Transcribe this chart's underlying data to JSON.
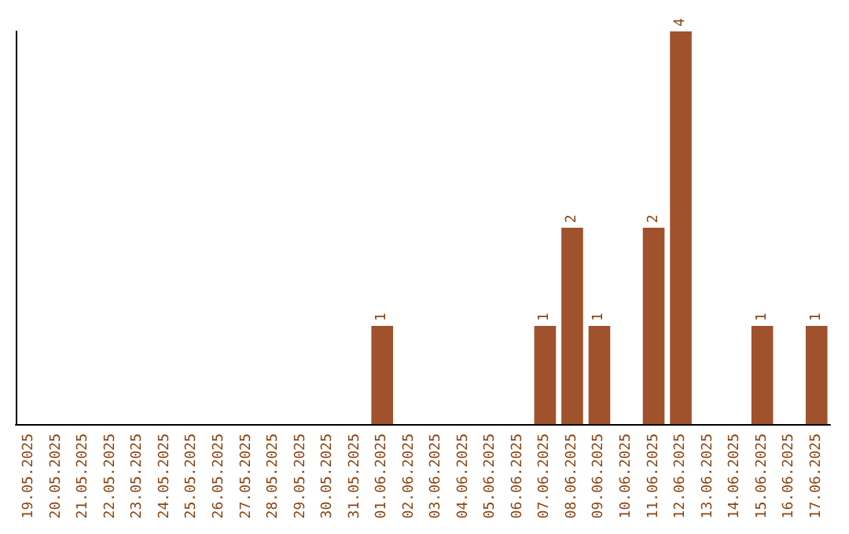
{
  "chart_data": {
    "type": "bar",
    "categories": [
      "19.05.2025",
      "20.05.2025",
      "21.05.2025",
      "22.05.2025",
      "23.05.2025",
      "24.05.2025",
      "25.05.2025",
      "26.05.2025",
      "27.05.2025",
      "28.05.2025",
      "29.05.2025",
      "30.05.2025",
      "31.05.2025",
      "01.06.2025",
      "02.06.2025",
      "03.06.2025",
      "04.06.2025",
      "05.06.2025",
      "06.06.2025",
      "07.06.2025",
      "08.06.2025",
      "09.06.2025",
      "10.06.2025",
      "11.06.2025",
      "12.06.2025",
      "13.06.2025",
      "14.06.2025",
      "15.06.2025",
      "16.06.2025",
      "17.06.2025"
    ],
    "values": [
      null,
      null,
      null,
      null,
      null,
      null,
      null,
      null,
      null,
      null,
      null,
      null,
      null,
      1,
      null,
      null,
      null,
      null,
      null,
      1,
      2,
      1,
      null,
      2,
      4,
      null,
      null,
      1,
      null,
      1
    ],
    "color": "#a0522d",
    "data_labels": true,
    "grid": false
  }
}
